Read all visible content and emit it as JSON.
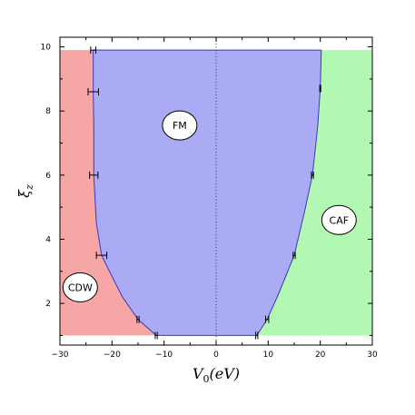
{
  "chart_data": {
    "type": "area",
    "title": "",
    "xlabel": "V_0(eV)",
    "ylabel": "ξ_z",
    "xlim": [
      -30,
      30
    ],
    "ylim": [
      0.7,
      10.3
    ],
    "plot_y_range": [
      1,
      9.9
    ],
    "plot_x_range": [
      -30,
      30
    ],
    "x_ticks": [
      -30,
      -20,
      -10,
      0,
      10,
      20,
      30
    ],
    "y_ticks": [
      2,
      4,
      6,
      8,
      10
    ],
    "x_tick_labels": [
      "−30",
      "−20",
      "−10",
      "0",
      "10",
      "20",
      "30"
    ],
    "y_tick_labels": [
      "2",
      "4",
      "6",
      "8",
      "10"
    ],
    "vertical_dotted_line_x": 0,
    "grid": false,
    "regions": [
      {
        "name": "CDW",
        "color": "#f7a6a6",
        "label_position": [
          -26.1,
          2.5
        ]
      },
      {
        "name": "FM",
        "color": "#aaaaf5",
        "label_position": [
          -7,
          7.55
        ]
      },
      {
        "name": "CAF",
        "color": "#b2f7b2",
        "label_position": [
          23.6,
          4.6
        ]
      }
    ],
    "series": [
      {
        "name": "CDW-FM boundary",
        "points": [
          [
            -11.5,
            1.0
          ],
          [
            -15.0,
            1.5
          ],
          [
            -18.0,
            2.2
          ],
          [
            -20.5,
            3.0
          ],
          [
            -22.0,
            3.5
          ],
          [
            -23.0,
            4.5
          ],
          [
            -23.5,
            6.0
          ],
          [
            -23.5,
            7.5
          ],
          [
            -23.6,
            8.6
          ],
          [
            -23.6,
            9.9
          ]
        ]
      },
      {
        "name": "FM-CAF boundary",
        "points": [
          [
            7.8,
            1.0
          ],
          [
            9.8,
            1.5
          ],
          [
            12.0,
            2.3
          ],
          [
            15.0,
            3.5
          ],
          [
            16.9,
            4.8
          ],
          [
            18.5,
            6.0
          ],
          [
            19.5,
            7.5
          ],
          [
            20.0,
            8.7
          ],
          [
            20.2,
            9.9
          ]
        ]
      }
    ],
    "error_bars": [
      {
        "x": -23.6,
        "y": 9.9,
        "xerr": 0.5
      },
      {
        "x": -23.6,
        "y": 8.6,
        "xerr": 1.0
      },
      {
        "x": -23.5,
        "y": 6.0,
        "xerr": 0.8
      },
      {
        "x": -22.0,
        "y": 3.5,
        "xerr": 1.0
      },
      {
        "x": -15.0,
        "y": 1.5,
        "xerr": 0.2
      },
      {
        "x": -11.5,
        "y": 1.0,
        "xerr": 0.2
      },
      {
        "x": 7.8,
        "y": 1.0,
        "xerr": 0.2
      },
      {
        "x": 9.8,
        "y": 1.5,
        "xerr": 0.3
      },
      {
        "x": 15.0,
        "y": 3.5,
        "xerr": 0.2
      },
      {
        "x": 18.5,
        "y": 6.0,
        "xerr": 0.2
      },
      {
        "x": 20.0,
        "y": 8.7,
        "xerr": 0.1
      }
    ]
  }
}
